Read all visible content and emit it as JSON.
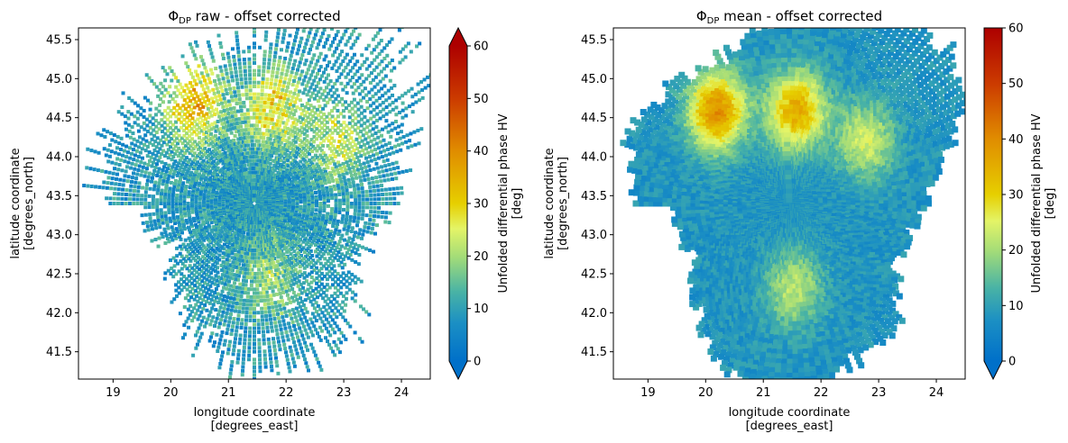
{
  "figure": {
    "panels": [
      {
        "title_prefix": "Φ",
        "title_sub": "DP",
        "title_suffix": " raw - offset corrected",
        "xlabel_line1": "longitude coordinate",
        "xlabel_line2": "[degrees_east]",
        "ylabel_line1": "latitude coordinate",
        "ylabel_line2": "[degrees_north]",
        "colorbar_label_line1": "Unfolded differential phase HV",
        "colorbar_label_line2": "[deg]",
        "colorbar_extend": "both"
      },
      {
        "title_prefix": "Φ",
        "title_sub": "DP",
        "title_suffix": " mean - offset corrected",
        "xlabel_line1": "longitude coordinate",
        "xlabel_line2": "[degrees_east]",
        "ylabel_line1": "latitude coordinate",
        "ylabel_line2": "[degrees_north]",
        "colorbar_label_line1": "Unfolded differential phase HV",
        "colorbar_label_line2": "[deg]",
        "colorbar_extend": "min"
      }
    ]
  },
  "chart_data": [
    {
      "type": "heatmap",
      "title": "ΦDP raw - offset corrected",
      "xlabel": "longitude coordinate [degrees_east]",
      "ylabel": "latitude coordinate [degrees_north]",
      "xlim": [
        18.4,
        24.5
      ],
      "ylim": [
        41.15,
        45.65
      ],
      "xticks": [
        19,
        20,
        21,
        22,
        23,
        24
      ],
      "yticks": [
        41.5,
        42.0,
        42.5,
        43.0,
        43.5,
        44.0,
        44.5,
        45.0,
        45.5
      ],
      "colorbar": {
        "label": "Unfolded differential phase HV [deg]",
        "range": [
          0,
          60
        ],
        "ticks": [
          0,
          10,
          20,
          30,
          40,
          50,
          60
        ],
        "extend": "both",
        "colormap": "blue-green-yellow-red"
      },
      "radar_center": {
        "lon": 21.45,
        "lat": 43.4
      },
      "style": "speckled",
      "coverage_extent_deg": [
        [
          -90,
          2.0
        ],
        [
          -60,
          2.2
        ],
        [
          -30,
          2.0
        ],
        [
          0,
          2.3
        ],
        [
          20,
          2.6
        ],
        [
          40,
          2.9
        ],
        [
          60,
          2.5
        ],
        [
          80,
          1.9
        ],
        [
          100,
          1.6
        ],
        [
          120,
          1.5
        ],
        [
          140,
          2.1
        ],
        [
          160,
          2.2
        ],
        [
          180,
          2.3
        ],
        [
          200,
          2.0
        ],
        [
          220,
          1.6
        ],
        [
          240,
          1.2
        ],
        [
          270,
          1.5
        ]
      ],
      "high_value_regions": [
        {
          "lon": 20.4,
          "lat": 44.7,
          "value": 38
        },
        {
          "lon": 21.8,
          "lat": 44.65,
          "value": 33
        },
        {
          "lon": 22.9,
          "lat": 44.2,
          "value": 25
        },
        {
          "lon": 21.7,
          "lat": 42.4,
          "value": 22
        }
      ],
      "typical_value": 9
    },
    {
      "type": "heatmap",
      "title": "ΦDP mean - offset corrected",
      "xlabel": "longitude coordinate [degrees_east]",
      "ylabel": "latitude coordinate [degrees_north]",
      "xlim": [
        18.4,
        24.5
      ],
      "ylim": [
        41.15,
        45.65
      ],
      "xticks": [
        19,
        20,
        21,
        22,
        23,
        24
      ],
      "yticks": [
        41.5,
        42.0,
        42.5,
        43.0,
        43.5,
        44.0,
        44.5,
        45.0,
        45.5
      ],
      "colorbar": {
        "label": "Unfolded differential phase HV [deg]",
        "range": [
          0,
          60
        ],
        "ticks": [
          0,
          10,
          20,
          30,
          40,
          50,
          60
        ],
        "extend": "min",
        "colormap": "blue-green-yellow-red"
      },
      "radar_center": {
        "lon": 21.45,
        "lat": 43.4
      },
      "style": "smoothed",
      "coverage_extent_deg": [
        [
          -90,
          2.0
        ],
        [
          -60,
          2.2
        ],
        [
          -30,
          2.0
        ],
        [
          0,
          2.3
        ],
        [
          20,
          2.6
        ],
        [
          40,
          2.9
        ],
        [
          60,
          2.5
        ],
        [
          80,
          1.9
        ],
        [
          100,
          1.6
        ],
        [
          120,
          1.5
        ],
        [
          140,
          2.1
        ],
        [
          160,
          2.2
        ],
        [
          180,
          2.5
        ],
        [
          200,
          2.3
        ],
        [
          220,
          1.8
        ],
        [
          240,
          1.4
        ],
        [
          270,
          1.5
        ]
      ],
      "high_value_regions": [
        {
          "lon": 20.2,
          "lat": 44.6,
          "value": 40
        },
        {
          "lon": 21.6,
          "lat": 44.6,
          "value": 36
        },
        {
          "lon": 22.8,
          "lat": 44.2,
          "value": 24
        },
        {
          "lon": 21.5,
          "lat": 42.3,
          "value": 22
        }
      ],
      "typical_value": 8
    }
  ]
}
